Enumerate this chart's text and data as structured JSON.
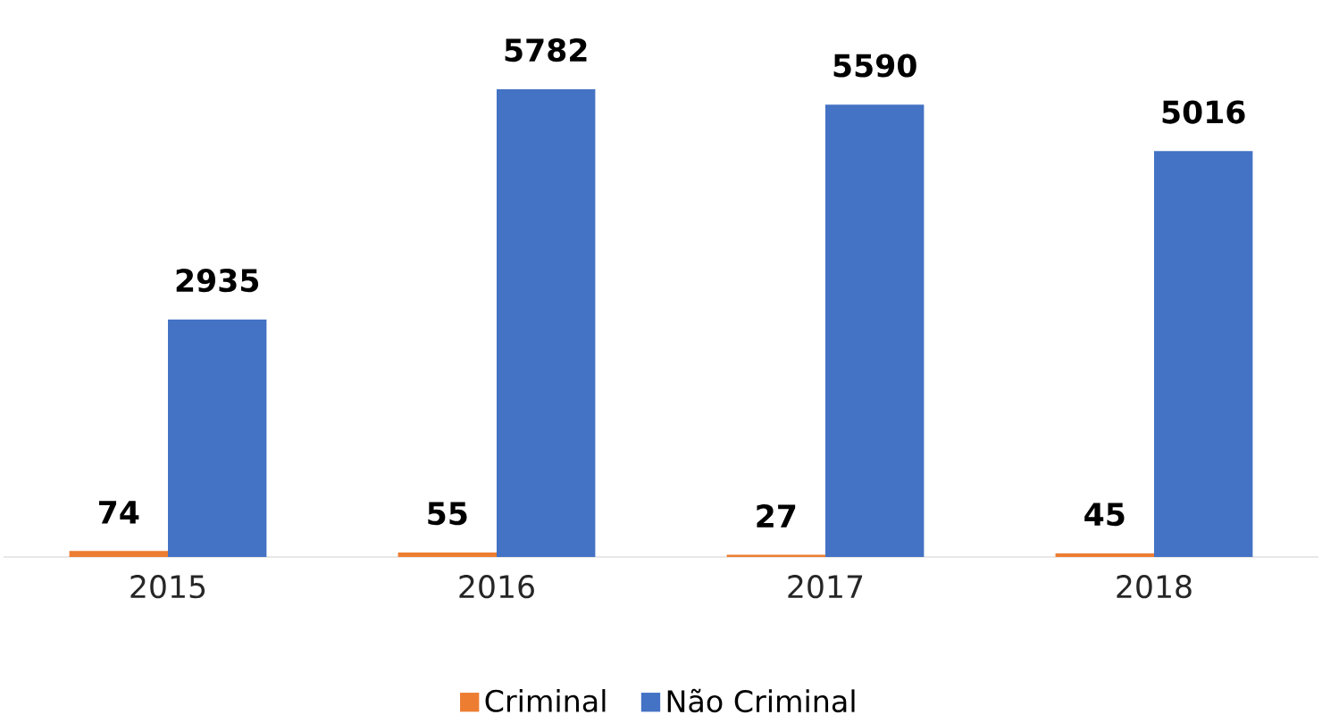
{
  "chart_data": {
    "type": "bar",
    "categories": [
      "2015",
      "2016",
      "2017",
      "2018"
    ],
    "series": [
      {
        "name": "Criminal",
        "color": "#ed7d31",
        "values": [
          74,
          55,
          27,
          45
        ]
      },
      {
        "name": "Não Criminal",
        "color": "#4472c4",
        "values": [
          2935,
          5782,
          5590,
          5016
        ]
      }
    ],
    "data_labels": true,
    "legend": "bottom"
  }
}
